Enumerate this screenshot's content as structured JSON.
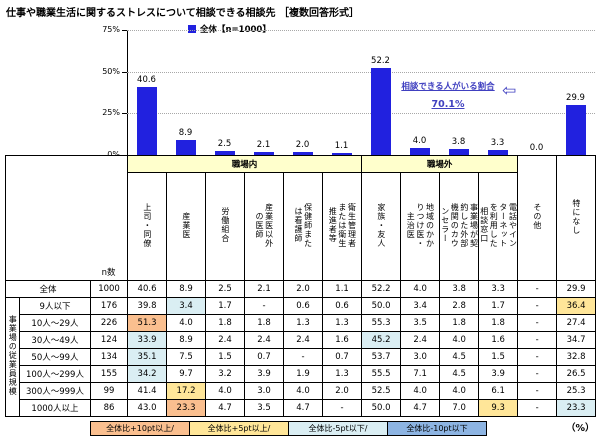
{
  "title": "仕事や職業生活に関するストレスについて相談できる相談先 ［複数回答形式］",
  "chart": {
    "legend_label": "全体【n=1000】",
    "bar_color": "#2121DF",
    "annotation": {
      "line1": "相談できる人がいる割合",
      "value": "70.1%",
      "color": "#4040C0",
      "arrow": "⇦"
    },
    "y_ticks": [
      {
        "label": "75%",
        "value": 75
      },
      {
        "label": "50%",
        "value": 50
      },
      {
        "label": "25%",
        "value": 25
      },
      {
        "label": "0%",
        "value": 0
      }
    ]
  },
  "chart_data": {
    "type": "bar",
    "title": "仕事や職業生活に関するストレスについて相談できる相談先［複数回答形式］",
    "series_name": "全体【n=1000】",
    "categories": [
      "上司・同僚",
      "産業医",
      "労働組合",
      "産業医以外の医師",
      "保健師または看護師",
      "衛生管理者または衛生推進者等",
      "家族・友人",
      "地域のかかりつけ医・主治医",
      "事業場が契約した外部機関のカウンセラー",
      "電話やインターネットを利用した相談窓口",
      "その他",
      "特になし"
    ],
    "values": [
      40.6,
      8.9,
      2.5,
      2.1,
      2.0,
      1.1,
      52.2,
      4.0,
      3.8,
      3.3,
      0.0,
      29.9
    ],
    "ylabel": "%",
    "ylim": [
      0,
      75
    ],
    "grid": true,
    "legend_position": "top",
    "annotation": "相談できる人がいる割合 70.1%"
  },
  "table": {
    "n_header": "n数",
    "row_group_label": "事業場の従業員規模",
    "group_headers": [
      {
        "label": "職場内",
        "span": 6,
        "bg": "#FFFFCC"
      },
      {
        "label": "職場外",
        "span": 4,
        "bg": "#FFFFCC"
      }
    ],
    "column_headers": [
      "上司・同僚",
      "産業医",
      "労働組合",
      "産業医以外の医師",
      "保健師または看護師",
      "衛生管理者または衛生推進者等",
      "家族・友人",
      "地域のかかりつけ医・主治医",
      "事業場が契約した外部機関のカウンセラー",
      "電話やインターネットを利用した相談窓口",
      "その他",
      "特になし"
    ],
    "rows": [
      {
        "label": "全体",
        "n": "1000",
        "values": [
          "40.6",
          "8.9",
          "2.5",
          "2.1",
          "2.0",
          "1.1",
          "52.2",
          "4.0",
          "3.8",
          "3.3",
          "-",
          "29.9"
        ],
        "flags": [
          null,
          null,
          null,
          null,
          null,
          null,
          null,
          null,
          null,
          null,
          null,
          null
        ]
      },
      {
        "label": "9人以下",
        "n": "176",
        "values": [
          "39.8",
          "3.4",
          "1.7",
          "-",
          "0.6",
          "0.6",
          "50.0",
          "3.4",
          "2.8",
          "1.7",
          "-",
          "36.4"
        ],
        "flags": [
          null,
          "minus5",
          null,
          null,
          null,
          null,
          null,
          null,
          null,
          null,
          null,
          "plus5"
        ]
      },
      {
        "label": "10人〜29人",
        "n": "226",
        "values": [
          "51.3",
          "4.0",
          "1.8",
          "1.8",
          "1.3",
          "1.3",
          "55.3",
          "3.5",
          "1.8",
          "1.8",
          "-",
          "27.4"
        ],
        "flags": [
          "plus10",
          null,
          null,
          null,
          null,
          null,
          null,
          null,
          null,
          null,
          null,
          null
        ]
      },
      {
        "label": "30人〜49人",
        "n": "124",
        "values": [
          "33.9",
          "8.9",
          "2.4",
          "2.4",
          "2.4",
          "1.6",
          "45.2",
          "2.4",
          "4.0",
          "1.6",
          "-",
          "34.7"
        ],
        "flags": [
          "minus5",
          null,
          null,
          null,
          null,
          null,
          "minus5",
          null,
          null,
          null,
          null,
          null
        ]
      },
      {
        "label": "50人〜99人",
        "n": "134",
        "values": [
          "35.1",
          "7.5",
          "1.5",
          "0.7",
          "-",
          "0.7",
          "53.7",
          "3.0",
          "4.5",
          "1.5",
          "-",
          "32.8"
        ],
        "flags": [
          "minus5",
          null,
          null,
          null,
          null,
          null,
          null,
          null,
          null,
          null,
          null,
          null
        ]
      },
      {
        "label": "100人〜299人",
        "n": "155",
        "values": [
          "34.2",
          "9.7",
          "3.2",
          "3.9",
          "1.9",
          "1.3",
          "55.5",
          "7.1",
          "4.5",
          "3.9",
          "-",
          "26.5"
        ],
        "flags": [
          "minus5",
          null,
          null,
          null,
          null,
          null,
          null,
          null,
          null,
          null,
          null,
          null
        ]
      },
      {
        "label": "300人〜999人",
        "n": "99",
        "values": [
          "41.4",
          "17.2",
          "4.0",
          "3.0",
          "4.0",
          "2.0",
          "52.5",
          "4.0",
          "4.0",
          "6.1",
          "-",
          "25.3"
        ],
        "flags": [
          null,
          "plus5",
          null,
          null,
          null,
          null,
          null,
          null,
          null,
          null,
          null,
          null
        ]
      },
      {
        "label": "1000人以上",
        "n": "86",
        "values": [
          "43.0",
          "23.3",
          "4.7",
          "3.5",
          "4.7",
          "-",
          "50.0",
          "4.7",
          "7.0",
          "9.3",
          "-",
          "23.3"
        ],
        "flags": [
          null,
          "plus10",
          null,
          null,
          null,
          null,
          null,
          null,
          null,
          "plus5",
          null,
          "minus5"
        ]
      }
    ],
    "unit_label": "（%）"
  },
  "color_legend": {
    "items": [
      {
        "label": "全体比+10pt以上/",
        "key": "plus10"
      },
      {
        "label": "全体比+5pt以上/",
        "key": "plus5"
      },
      {
        "label": "全体比-5pt以下/",
        "key": "minus5"
      },
      {
        "label": "全体比-10pt以下",
        "key": "minus10"
      }
    ],
    "colors": {
      "plus10": "#FABF8F",
      "plus5": "#FFE699",
      "minus5": "#DAEEF3",
      "minus10": "#8DB4E2"
    }
  }
}
